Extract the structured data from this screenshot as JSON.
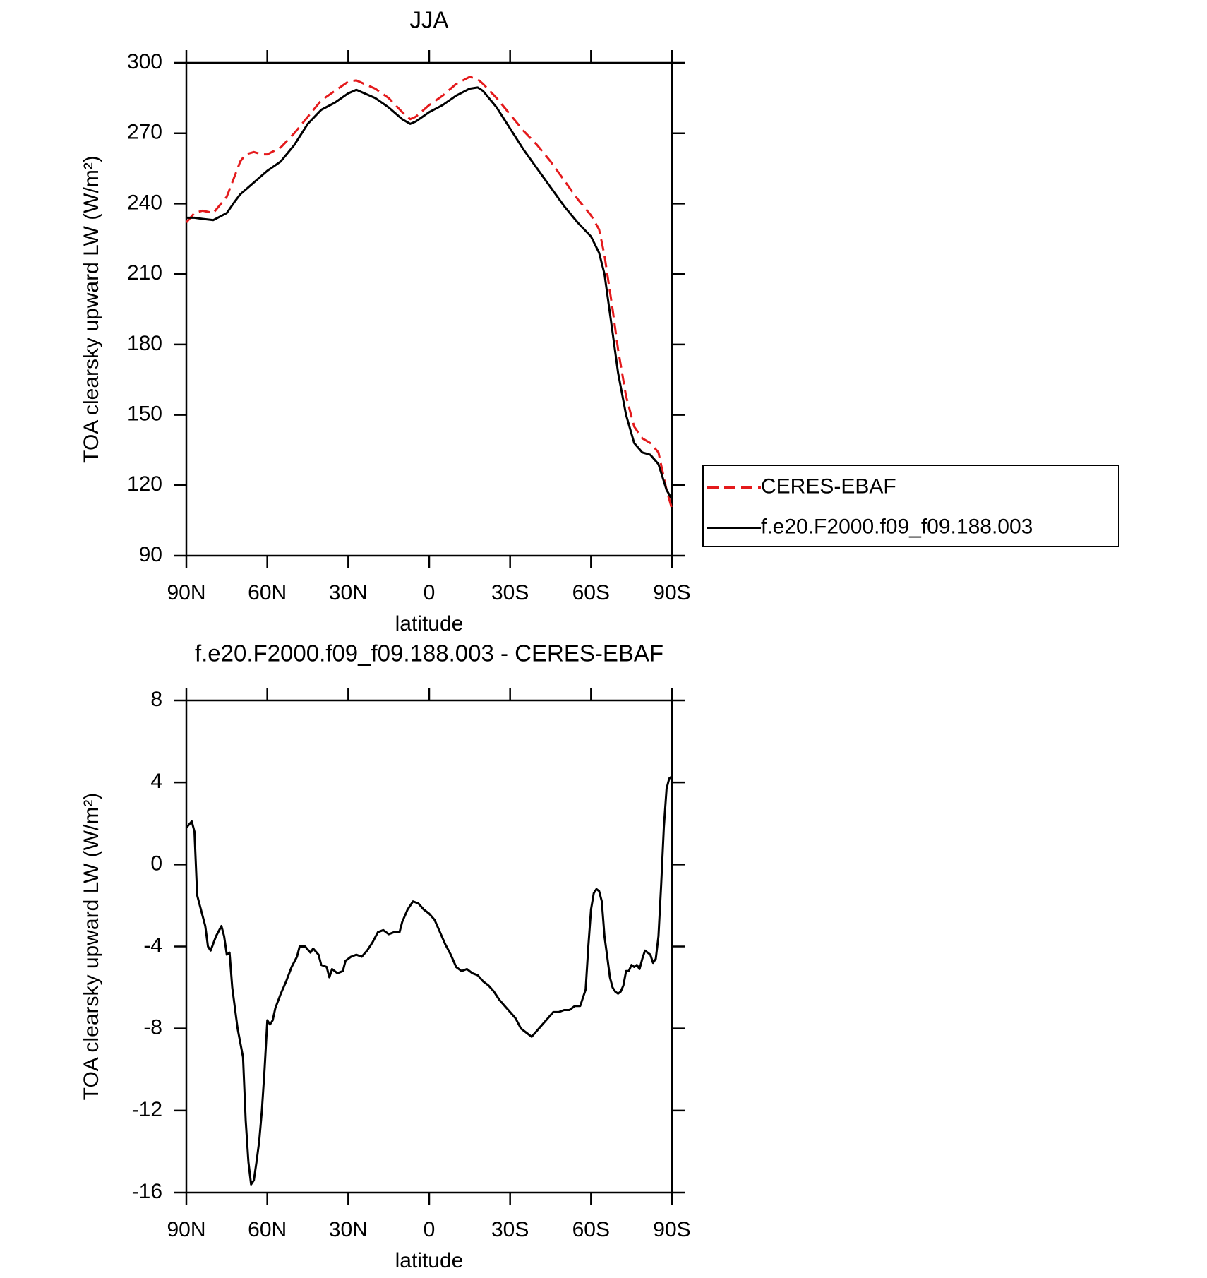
{
  "chart_data": [
    {
      "type": "line",
      "title": "JJA",
      "xlabel": "latitude",
      "ylabel": "TOA clearsky upward LW (W/m²)",
      "x": [
        90,
        87,
        84,
        80,
        75,
        72,
        70,
        68,
        65,
        62,
        60,
        55,
        50,
        45,
        40,
        35,
        30,
        27,
        20,
        15,
        10,
        7,
        5,
        0,
        -5,
        -10,
        -15,
        -18,
        -20,
        -25,
        -30,
        -35,
        -40,
        -45,
        -50,
        -55,
        -60,
        -63,
        -65,
        -68,
        -70,
        -73,
        -76,
        -79,
        -82,
        -85,
        -88,
        -90
      ],
      "series": [
        {
          "name": "CERES-EBAF",
          "color": "#e41a1c",
          "dash": true,
          "values": [
            232,
            236,
            237,
            236,
            243,
            252,
            258,
            261,
            262,
            261,
            261,
            264,
            270,
            277,
            284,
            288,
            292,
            292.5,
            289,
            285,
            279,
            276,
            277,
            282,
            286,
            291,
            294,
            293,
            291,
            285,
            278,
            271,
            265,
            258,
            250,
            242,
            235,
            229,
            218,
            195,
            178,
            158,
            145,
            140,
            138,
            134,
            118,
            110
          ]
        },
        {
          "name": "f.e20.F2000.f09_f09.188.003",
          "color": "#000000",
          "dash": false,
          "values": [
            234,
            234,
            233.5,
            233,
            236,
            241,
            244,
            246,
            249,
            252,
            254,
            258,
            265,
            274,
            280,
            283,
            287,
            288.5,
            285,
            281,
            276,
            274,
            275,
            279,
            282,
            286,
            289,
            289.5,
            288,
            281,
            272,
            263,
            255,
            247,
            239,
            232,
            226,
            219,
            210,
            185,
            168,
            150,
            138,
            134,
            133,
            129,
            118,
            114
          ]
        }
      ],
      "xlim": [
        90,
        -90
      ],
      "xticks": [
        {
          "value": 90,
          "label": "90N"
        },
        {
          "value": 60,
          "label": "60N"
        },
        {
          "value": 30,
          "label": "30N"
        },
        0,
        {
          "value": -30,
          "label": "30S"
        },
        {
          "value": -60,
          "label": "60S"
        },
        {
          "value": -90,
          "label": "90S"
        }
      ],
      "ylim": [
        90,
        300
      ],
      "yticks": [
        90,
        120,
        150,
        180,
        210,
        240,
        270,
        300
      ],
      "legend": "right"
    },
    {
      "type": "line",
      "title": "f.e20.F2000.f09_f09.188.003 - CERES-EBAF",
      "xlabel": "latitude",
      "ylabel": "TOA clearsky upward LW (W/m²)",
      "x": [
        90,
        88,
        87,
        86,
        85,
        83,
        82,
        81,
        79,
        77,
        76,
        75,
        74,
        73,
        71,
        69,
        68,
        67,
        66,
        65,
        64,
        63,
        62,
        61,
        60,
        59,
        58,
        57,
        55,
        53,
        51,
        49,
        48,
        46,
        44,
        43,
        41,
        40,
        38,
        37,
        36,
        34,
        32,
        31,
        29,
        27,
        25,
        23,
        21,
        19,
        17,
        15,
        13,
        11,
        10,
        8,
        6,
        4,
        2,
        0,
        -2,
        -4,
        -6,
        -8,
        -10,
        -12,
        -14,
        -16,
        -18,
        -20,
        -22,
        -24,
        -26,
        -28,
        -30,
        -32,
        -34,
        -36,
        -38,
        -40,
        -42,
        -44,
        -46,
        -48,
        -50,
        -52,
        -54,
        -56,
        -58,
        -59,
        -60,
        -61,
        -62,
        -63,
        -64,
        -65,
        -66,
        -67,
        -68,
        -69,
        -70,
        -71,
        -72,
        -73,
        -74,
        -75,
        -76,
        -77,
        -78,
        -79,
        -80,
        -81,
        -82,
        -83,
        -84,
        -85,
        -86,
        -87,
        -88,
        -89,
        -90
      ],
      "series": [
        {
          "color": "#000000",
          "dash": false,
          "values": [
            1.8,
            2.1,
            1.6,
            -1.5,
            -2,
            -3,
            -4,
            -4.2,
            -3.5,
            -3,
            -3.5,
            -4.4,
            -4.3,
            -6,
            -8,
            -9.4,
            -12.5,
            -14.5,
            -15.6,
            -15.4,
            -14.5,
            -13.5,
            -12,
            -10,
            -7.6,
            -7.8,
            -7.6,
            -7,
            -6.3,
            -5.7,
            -5,
            -4.5,
            -4,
            -4,
            -4.3,
            -4.1,
            -4.4,
            -4.9,
            -5,
            -5.5,
            -5.1,
            -5.3,
            -5.2,
            -4.7,
            -4.5,
            -4.4,
            -4.5,
            -4.2,
            -3.8,
            -3.3,
            -3.2,
            -3.4,
            -3.3,
            -3.3,
            -2.8,
            -2.2,
            -1.8,
            -1.9,
            -2.2,
            -2.4,
            -2.7,
            -3.3,
            -3.9,
            -4.4,
            -5,
            -5.2,
            -5.1,
            -5.3,
            -5.4,
            -5.7,
            -5.9,
            -6.2,
            -6.6,
            -6.9,
            -7.2,
            -7.5,
            -8,
            -8.2,
            -8.4,
            -8.1,
            -7.8,
            -7.5,
            -7.2,
            -7.2,
            -7.1,
            -7.1,
            -6.9,
            -6.9,
            -6.1,
            -4,
            -2.2,
            -1.4,
            -1.2,
            -1.3,
            -1.8,
            -3.5,
            -4.5,
            -5.5,
            -6,
            -6.2,
            -6.3,
            -6.2,
            -5.9,
            -5.2,
            -5.2,
            -4.9,
            -5,
            -4.9,
            -5.1,
            -4.6,
            -4.2,
            -4.3,
            -4.4,
            -4.8,
            -4.6,
            -3.5,
            -1,
            1.8,
            3.7,
            4.2,
            4.3
          ]
        }
      ],
      "xlim": [
        90,
        -90
      ],
      "xticks": [
        {
          "value": 90,
          "label": "90N"
        },
        {
          "value": 60,
          "label": "60N"
        },
        {
          "value": 30,
          "label": "30N"
        },
        0,
        {
          "value": -30,
          "label": "30S"
        },
        {
          "value": -60,
          "label": "60S"
        },
        {
          "value": -90,
          "label": "90S"
        }
      ],
      "ylim": [
        -16,
        8
      ],
      "yticks": [
        -16,
        -12,
        -8,
        -4,
        0,
        4,
        8
      ]
    }
  ]
}
